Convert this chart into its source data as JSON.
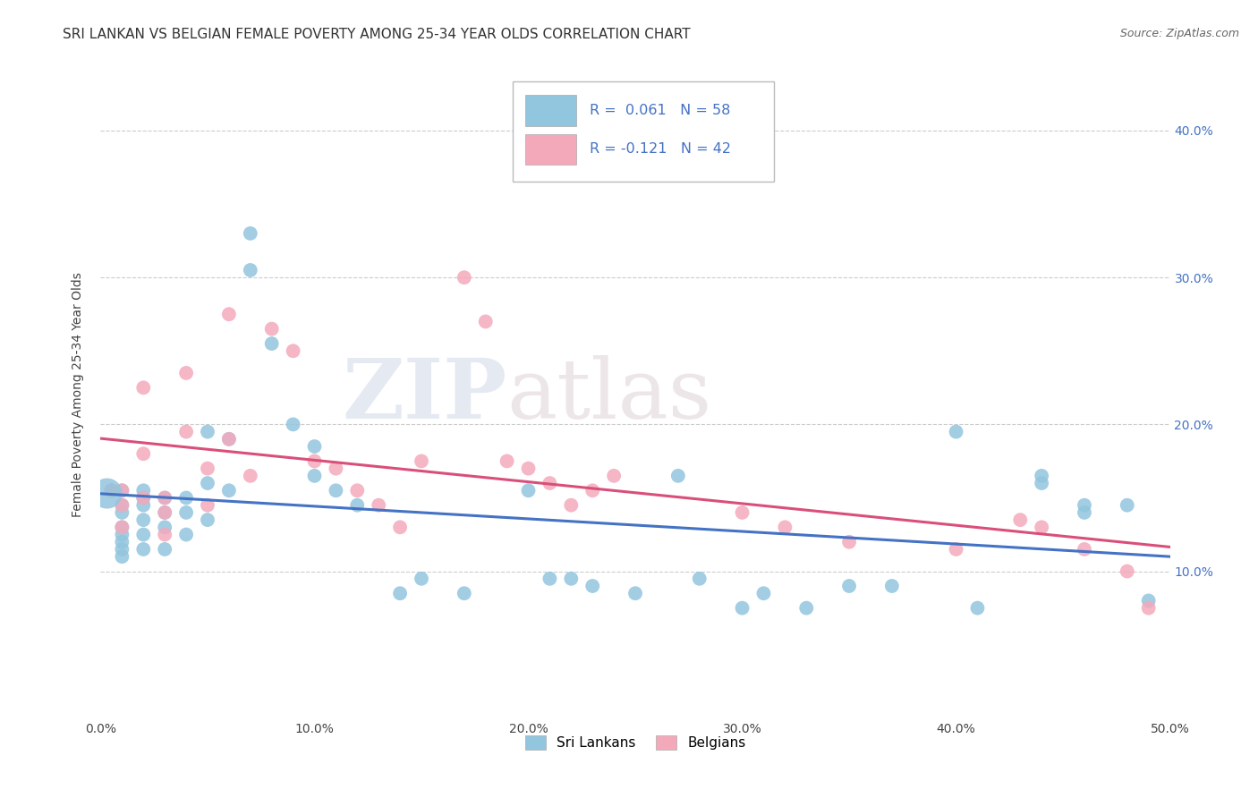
{
  "title": "SRI LANKAN VS BELGIAN FEMALE POVERTY AMONG 25-34 YEAR OLDS CORRELATION CHART",
  "source": "Source: ZipAtlas.com",
  "ylabel": "Female Poverty Among 25-34 Year Olds",
  "xlim": [
    0.0,
    0.5
  ],
  "ylim": [
    0.0,
    0.44
  ],
  "xticks": [
    0.0,
    0.1,
    0.2,
    0.3,
    0.4,
    0.5
  ],
  "yticks": [
    0.1,
    0.2,
    0.3,
    0.4
  ],
  "xtick_labels": [
    "0.0%",
    "10.0%",
    "20.0%",
    "30.0%",
    "40.0%",
    "50.0%"
  ],
  "ytick_labels": [
    "10.0%",
    "20.0%",
    "30.0%",
    "40.0%"
  ],
  "sri_lankan_color": "#92C5DE",
  "belgian_color": "#F4A9BB",
  "line_sri_lankan": "#4472C4",
  "line_belgian": "#D94F7A",
  "background_color": "#FFFFFF",
  "grid_color": "#CCCCCC",
  "legend_R_sri": "0.061",
  "legend_N_sri": "58",
  "legend_R_bel": "-0.121",
  "legend_N_bel": "42",
  "watermark_zip": "ZIP",
  "watermark_atlas": "atlas",
  "title_fontsize": 11,
  "sri_lankans_x": [
    0.005,
    0.01,
    0.01,
    0.01,
    0.01,
    0.01,
    0.01,
    0.01,
    0.01,
    0.02,
    0.02,
    0.02,
    0.02,
    0.02,
    0.02,
    0.03,
    0.03,
    0.03,
    0.03,
    0.04,
    0.04,
    0.04,
    0.05,
    0.05,
    0.05,
    0.06,
    0.06,
    0.07,
    0.07,
    0.08,
    0.09,
    0.1,
    0.1,
    0.11,
    0.12,
    0.14,
    0.15,
    0.17,
    0.2,
    0.21,
    0.22,
    0.23,
    0.25,
    0.27,
    0.28,
    0.3,
    0.31,
    0.33,
    0.35,
    0.37,
    0.4,
    0.41,
    0.44,
    0.44,
    0.46,
    0.46,
    0.48,
    0.49
  ],
  "sri_lankans_y": [
    0.155,
    0.155,
    0.145,
    0.14,
    0.13,
    0.125,
    0.12,
    0.115,
    0.11,
    0.155,
    0.15,
    0.145,
    0.135,
    0.125,
    0.115,
    0.15,
    0.14,
    0.13,
    0.115,
    0.15,
    0.14,
    0.125,
    0.195,
    0.16,
    0.135,
    0.19,
    0.155,
    0.33,
    0.305,
    0.255,
    0.2,
    0.185,
    0.165,
    0.155,
    0.145,
    0.085,
    0.095,
    0.085,
    0.155,
    0.095,
    0.095,
    0.09,
    0.085,
    0.165,
    0.095,
    0.075,
    0.085,
    0.075,
    0.09,
    0.09,
    0.195,
    0.075,
    0.165,
    0.16,
    0.145,
    0.14,
    0.145,
    0.08
  ],
  "belgians_x": [
    0.005,
    0.01,
    0.01,
    0.01,
    0.02,
    0.02,
    0.02,
    0.03,
    0.03,
    0.03,
    0.04,
    0.04,
    0.05,
    0.05,
    0.06,
    0.06,
    0.07,
    0.08,
    0.09,
    0.1,
    0.11,
    0.12,
    0.13,
    0.14,
    0.15,
    0.17,
    0.18,
    0.19,
    0.2,
    0.21,
    0.22,
    0.23,
    0.24,
    0.3,
    0.32,
    0.35,
    0.4,
    0.43,
    0.44,
    0.46,
    0.48,
    0.49
  ],
  "belgians_y": [
    0.155,
    0.155,
    0.145,
    0.13,
    0.225,
    0.18,
    0.15,
    0.15,
    0.14,
    0.125,
    0.235,
    0.195,
    0.17,
    0.145,
    0.275,
    0.19,
    0.165,
    0.265,
    0.25,
    0.175,
    0.17,
    0.155,
    0.145,
    0.13,
    0.175,
    0.3,
    0.27,
    0.175,
    0.17,
    0.16,
    0.145,
    0.155,
    0.165,
    0.14,
    0.13,
    0.12,
    0.115,
    0.135,
    0.13,
    0.115,
    0.1,
    0.075
  ]
}
